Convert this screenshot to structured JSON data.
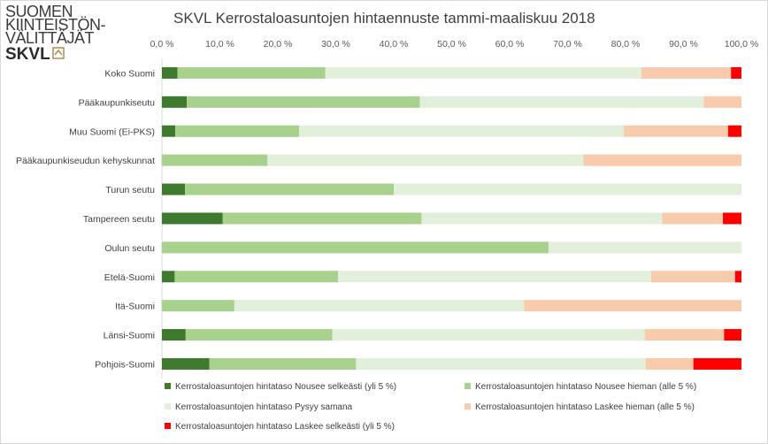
{
  "logo": {
    "line1": "SUOMEN",
    "line2": "KIINTEISTÖN-",
    "line3": "VÄLITTÄJÄT",
    "brand": "SKVL"
  },
  "chart_data": {
    "type": "bar",
    "orientation": "horizontal",
    "stacked": true,
    "title": "SKVL Kerrostaloasuntojen hintaennuste tammi-maaliskuu 2018",
    "xlim": [
      0,
      100
    ],
    "x_ticks": [
      "0,0 %",
      "10,0 %",
      "20,0 %",
      "30,0 %",
      "40,0 %",
      "50,0 %",
      "60,0 %",
      "70,0 %",
      "80,0 %",
      "90,0 %",
      "100,0 %"
    ],
    "grid": false,
    "legend_position": "bottom",
    "categories": [
      "Koko Suomi",
      "Pääkaupunkiseutu",
      "Muu Suomi (Ei-PKS)",
      "Pääkaupunkiseudun kehyskunnat",
      "Turun seutu",
      "Tampereen seutu",
      "Oulun seutu",
      "Etelä-Suomi",
      "Itä-Suomi",
      "Länsi-Suomi",
      "Pohjois-Suomi"
    ],
    "series": [
      {
        "name": "Kerrostaloasuntojen hintataso Nousee selkeästi (yli 5 %)",
        "color": "#3d7a2e",
        "values": [
          2.7,
          4.3,
          2.3,
          0,
          4.0,
          10.5,
          0,
          2.2,
          0,
          4.1,
          8.2
        ]
      },
      {
        "name": "Kerrostaloasuntojen hintataso Nousee hieman (alle 5 %)",
        "color": "#a9d18e",
        "values": [
          25.5,
          40.2,
          21.4,
          18.2,
          36.0,
          34.3,
          66.7,
          28.2,
          12.5,
          25.3,
          25.3
        ]
      },
      {
        "name": "Kerrostaloasuntojen hintataso Pysyy samana",
        "color": "#e2efda",
        "values": [
          54.5,
          49.0,
          56.0,
          54.5,
          60.0,
          41.5,
          33.3,
          54.0,
          50.0,
          53.9,
          50.0
        ]
      },
      {
        "name": "Kerrostaloasuntojen hintataso Laskee hieman (alle 5 %)",
        "color": "#f8cbad",
        "values": [
          15.5,
          6.5,
          18.0,
          27.3,
          0,
          10.5,
          0,
          14.5,
          37.5,
          13.7,
          8.2
        ]
      },
      {
        "name": "Kerrostaloasuntojen hintataso Laskee selkeästi (yli 5 %)",
        "color": "#ff0000",
        "values": [
          1.8,
          0,
          2.3,
          0,
          0,
          3.2,
          0,
          1.1,
          0,
          3.0,
          8.3
        ]
      }
    ]
  }
}
